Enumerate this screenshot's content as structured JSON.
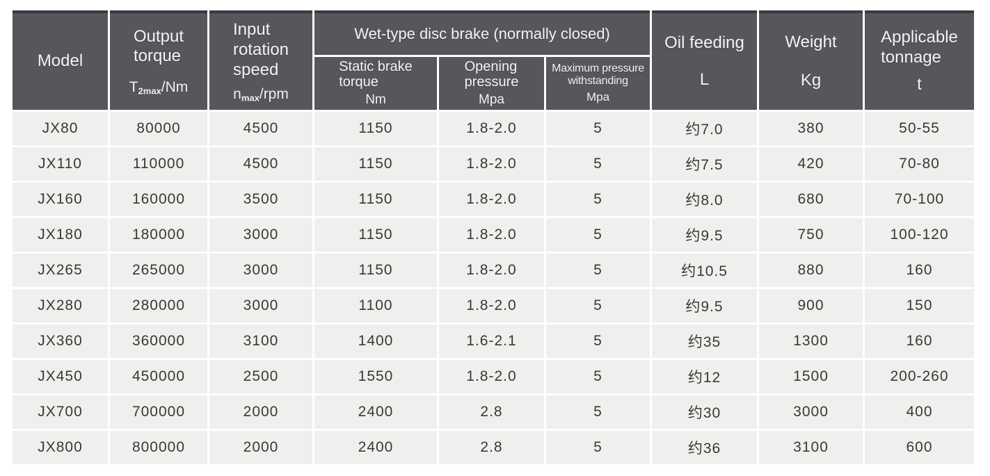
{
  "colors": {
    "header_bg": "#56565c",
    "header_top_border": "#3a3a41",
    "header_text": "#f4f4f4",
    "cell_bg": "#efefee",
    "cell_text": "#3b3734",
    "gap": "#ffffff"
  },
  "table": {
    "group_header": {
      "label": "Wet-type disc brake (normally closed)"
    },
    "columns": [
      {
        "id": "model",
        "label": "Model"
      },
      {
        "id": "output-torque",
        "lines": [
          "Output",
          "torque"
        ],
        "symbol": {
          "base": "T",
          "sub": "2max",
          "unit": "/Nm"
        }
      },
      {
        "id": "input-rotation-speed",
        "lines": [
          "Input",
          "rotation",
          "speed"
        ],
        "symbol": {
          "base": "n",
          "sub": "max",
          "unit": "/rpm"
        }
      },
      {
        "id": "static-brake-torque",
        "lines": [
          "Static brake",
          "torque"
        ],
        "unit": "Nm"
      },
      {
        "id": "opening-pressure",
        "lines": [
          "Opening",
          "pressure"
        ],
        "unit": "Mpa"
      },
      {
        "id": "max-pressure-withstanding",
        "lines": [
          "Maximum pressure",
          "withstanding"
        ],
        "unit": "Mpa"
      },
      {
        "id": "oil-feeding",
        "label": "Oil feeding",
        "unit": "L"
      },
      {
        "id": "weight",
        "label": "Weight",
        "unit": "Kg"
      },
      {
        "id": "applicable-tonnage",
        "lines": [
          "Applicable",
          "tonnage"
        ],
        "unit": "t"
      }
    ],
    "rows": [
      [
        "JX80",
        "80000",
        "4500",
        "1150",
        "1.8-2.0",
        "5",
        "约7.0",
        "380",
        "50-55"
      ],
      [
        "JX110",
        "110000",
        "4500",
        "1150",
        "1.8-2.0",
        "5",
        "约7.5",
        "420",
        "70-80"
      ],
      [
        "JX160",
        "160000",
        "3500",
        "1150",
        "1.8-2.0",
        "5",
        "约8.0",
        "680",
        "70-100"
      ],
      [
        "JX180",
        "180000",
        "3000",
        "1150",
        "1.8-2.0",
        "5",
        "约9.5",
        "750",
        "100-120"
      ],
      [
        "JX265",
        "265000",
        "3000",
        "1150",
        "1.8-2.0",
        "5",
        "约10.5",
        "880",
        "160"
      ],
      [
        "JX280",
        "280000",
        "3000",
        "1100",
        "1.8-2.0",
        "5",
        "约9.5",
        "900",
        "150"
      ],
      [
        "JX360",
        "360000",
        "3100",
        "1400",
        "1.6-2.1",
        "5",
        "约35",
        "1300",
        "160"
      ],
      [
        "JX450",
        "450000",
        "2500",
        "1550",
        "1.8-2.0",
        "5",
        "约12",
        "1500",
        "200-260"
      ],
      [
        "JX700",
        "700000",
        "2000",
        "2400",
        "2.8",
        "5",
        "约30",
        "3000",
        "400"
      ],
      [
        "JX800",
        "800000",
        "2000",
        "2400",
        "2.8",
        "5",
        "约36",
        "3100",
        "600"
      ]
    ]
  }
}
